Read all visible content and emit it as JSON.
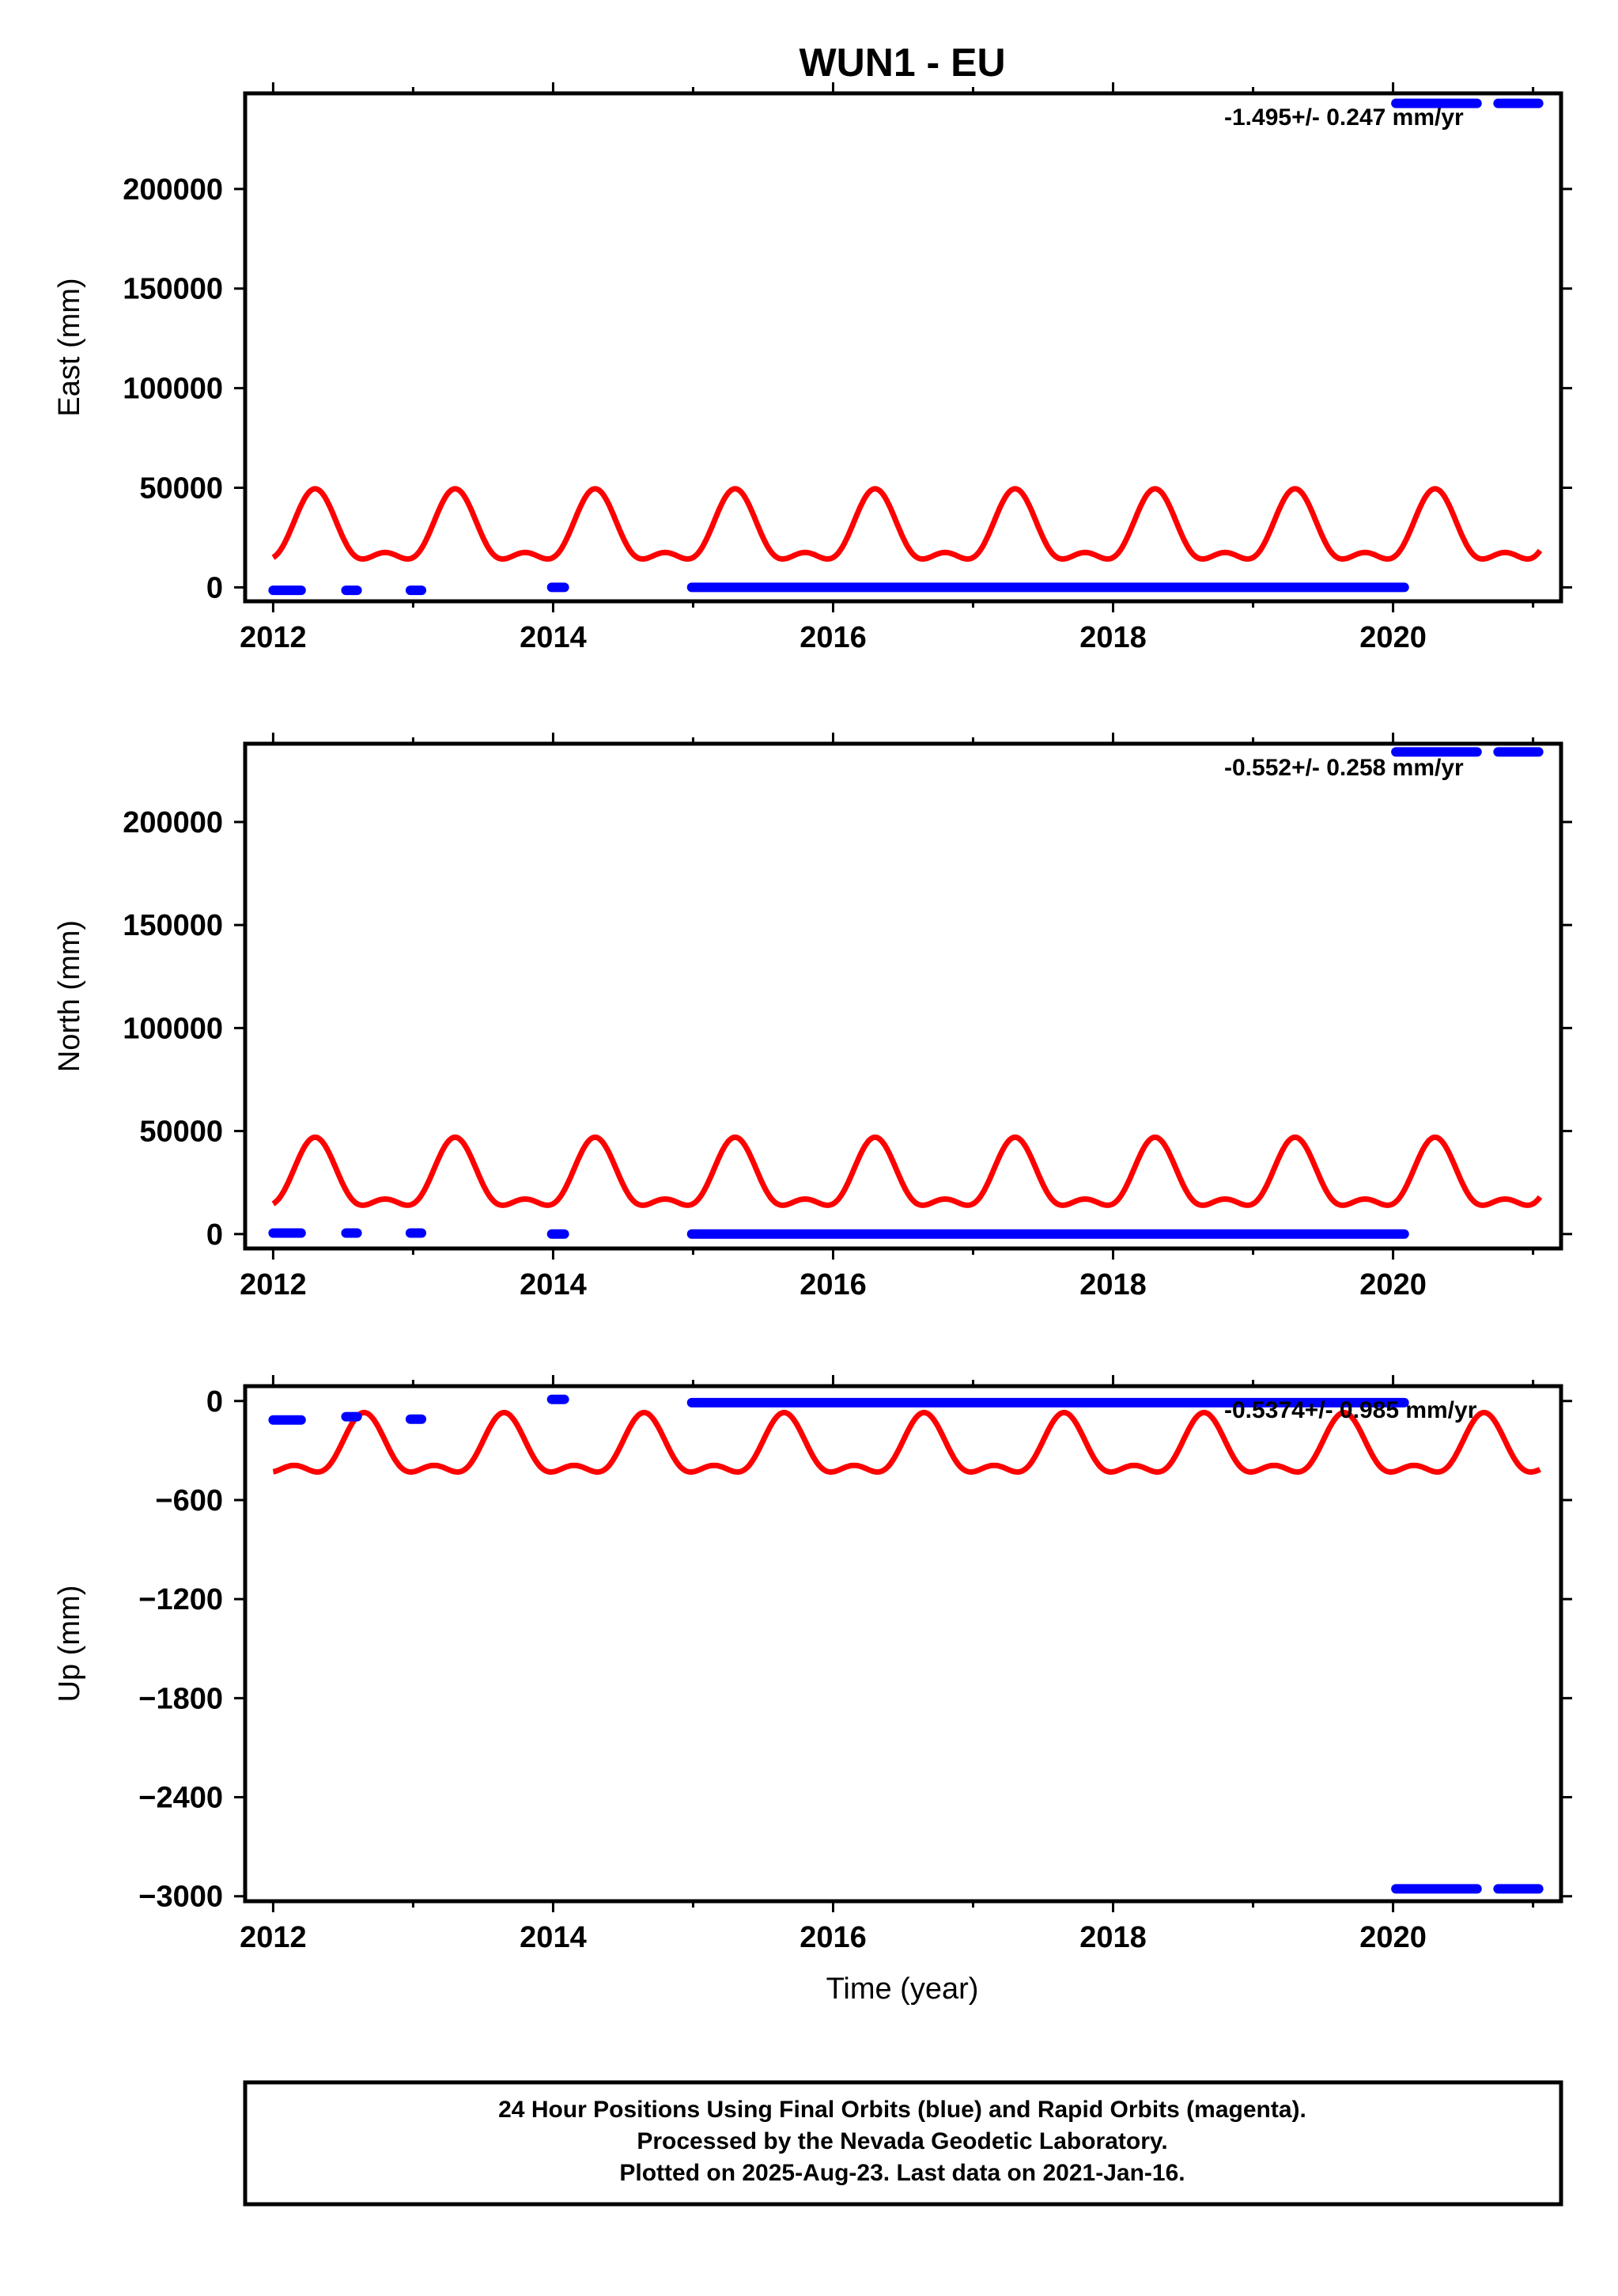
{
  "title": "WUN1 - EU",
  "xlabel": "Time (year)",
  "footer": {
    "line1": "24 Hour Positions Using Final Orbits (blue) and Rapid Orbits (magenta).",
    "line2": "Processed by the Nevada Geodetic Laboratory.",
    "line3": "Plotted on 2025-Aug-23. Last data on 2021-Jan-16."
  },
  "colors": {
    "final_orbits": "#0000ff",
    "model": "#ff0000",
    "axis": "#000000"
  },
  "chart_data": [
    {
      "type": "scatter",
      "ylabel": "East (mm)",
      "rate_label": "-1.495+/- 0.247 mm/yr",
      "xlim": [
        2011.8,
        2021.2
      ],
      "ylim": [
        -7000,
        248000
      ],
      "xticks": [
        2012,
        2014,
        2016,
        2018,
        2020
      ],
      "yticks": [
        0,
        50000,
        100000,
        150000,
        200000
      ],
      "series": [
        {
          "segments": [
            {
              "x": [
                2012.0,
                2012.2
              ],
              "y": -1500
            },
            {
              "x": [
                2012.52,
                2012.6
              ],
              "y": -1500
            },
            {
              "x": [
                2012.98,
                2013.06
              ],
              "y": -1500
            },
            {
              "x": [
                2013.99,
                2014.08
              ],
              "y": 0
            },
            {
              "x": [
                2014.99,
                2020.08
              ],
              "y": 0
            },
            {
              "x": [
                2020.02,
                2020.6
              ],
              "y": 243000
            },
            {
              "x": [
                2020.75,
                2021.04
              ],
              "y": 243000
            }
          ]
        },
        {
          "model": {
            "mean": 26000,
            "annual_amp": 16000,
            "annual_phase": 2012.3,
            "semi_amp": 7500,
            "semi_phase": 2012.3
          }
        }
      ]
    },
    {
      "type": "scatter",
      "ylabel": "North (mm)",
      "rate_label": "-0.552+/- 0.258 mm/yr",
      "xlim": [
        2011.8,
        2021.2
      ],
      "ylim": [
        -7000,
        238000
      ],
      "xticks": [
        2012,
        2014,
        2016,
        2018,
        2020
      ],
      "yticks": [
        0,
        50000,
        100000,
        150000,
        200000
      ],
      "series": [
        {
          "segments": [
            {
              "x": [
                2012.0,
                2012.2
              ],
              "y": 500
            },
            {
              "x": [
                2012.52,
                2012.6
              ],
              "y": 500
            },
            {
              "x": [
                2012.98,
                2013.06
              ],
              "y": 500
            },
            {
              "x": [
                2013.99,
                2014.08
              ],
              "y": 0
            },
            {
              "x": [
                2014.99,
                2020.08
              ],
              "y": 0
            },
            {
              "x": [
                2020.02,
                2020.6
              ],
              "y": 234000
            },
            {
              "x": [
                2020.75,
                2021.04
              ],
              "y": 234000
            }
          ]
        },
        {
          "model": {
            "mean": 25000,
            "annual_amp": 15000,
            "annual_phase": 2012.3,
            "semi_amp": 7000,
            "semi_phase": 2012.3
          }
        }
      ]
    },
    {
      "type": "scatter",
      "ylabel": "Up (mm)",
      "rate_label": "-0.5374+/- 0.985 mm/yr",
      "xlim": [
        2011.8,
        2021.2
      ],
      "ylim": [
        -3030,
        90
      ],
      "xticks": [
        2012,
        2014,
        2016,
        2018,
        2020
      ],
      "yticks": [
        0,
        -600,
        -1200,
        -1800,
        -2400,
        -3000
      ],
      "series": [
        {
          "segments": [
            {
              "x": [
                2012.0,
                2012.2
              ],
              "y": -115
            },
            {
              "x": [
                2012.52,
                2012.6
              ],
              "y": -95
            },
            {
              "x": [
                2012.98,
                2013.06
              ],
              "y": -110
            },
            {
              "x": [
                2013.99,
                2014.08
              ],
              "y": 10
            },
            {
              "x": [
                2014.99,
                2020.08
              ],
              "y": -10
            },
            {
              "x": [
                2020.02,
                2020.6
              ],
              "y": -2955
            },
            {
              "x": [
                2020.75,
                2021.04
              ],
              "y": -2955
            }
          ]
        },
        {
          "model": {
            "mean": -310,
            "annual_amp": 160,
            "annual_phase": 2012.65,
            "semi_amp": 80,
            "semi_phase": 2012.65
          }
        }
      ]
    }
  ]
}
